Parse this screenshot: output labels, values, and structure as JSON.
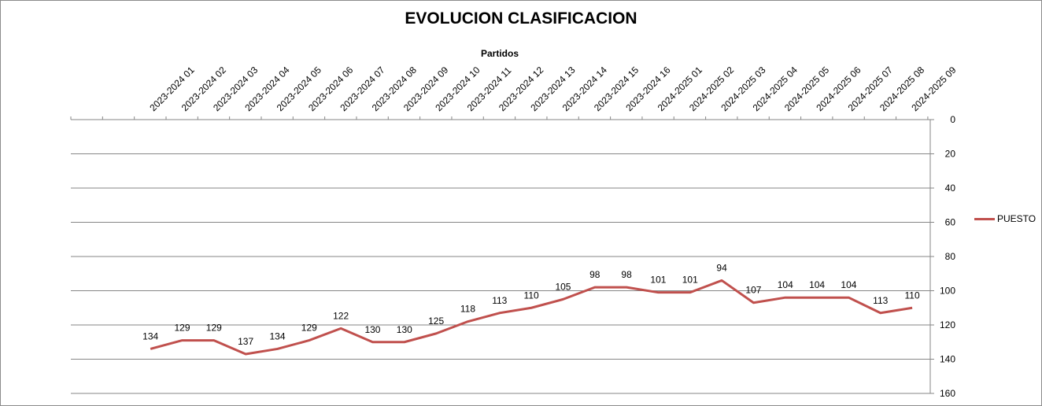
{
  "chart_data": {
    "type": "line",
    "title": "EVOLUCION CLASIFICACION",
    "xlabel": "Partidos",
    "ylabel": "",
    "ylim": [
      0,
      160
    ],
    "y_inverted": true,
    "y_ticks": [
      0,
      20,
      40,
      60,
      80,
      100,
      120,
      140,
      160
    ],
    "y_axis_position": "right",
    "x_axis_position": "top",
    "grid": true,
    "legend_position": "right",
    "categories": [
      "2023-2024 01",
      "2023-2024 02",
      "2023-2024 03",
      "2023-2024 04",
      "2023-2024 05",
      "2023-2024 06",
      "2023-2024 07",
      "2023-2024 08",
      "2023-2024 09",
      "2023-2024 10",
      "2023-2024 11",
      "2023-2024 12",
      "2023-2024 13",
      "2023-2024 14",
      "2023-2024 15",
      "2023-2024 16",
      "2024-2025 01",
      "2024-2025 02",
      "2024-2025 03",
      "2024-2025 04",
      "2024-2025 05",
      "2024-2025 06",
      "2024-2025 07",
      "2024-2025 08",
      "2024-2025 09"
    ],
    "series": [
      {
        "name": "PUESTO",
        "color": "#c0504d",
        "values": [
          134,
          129,
          129,
          137,
          134,
          129,
          122,
          130,
          130,
          125,
          118,
          113,
          110,
          105,
          98,
          98,
          101,
          101,
          94,
          107,
          104,
          104,
          104,
          113,
          110
        ]
      }
    ]
  }
}
